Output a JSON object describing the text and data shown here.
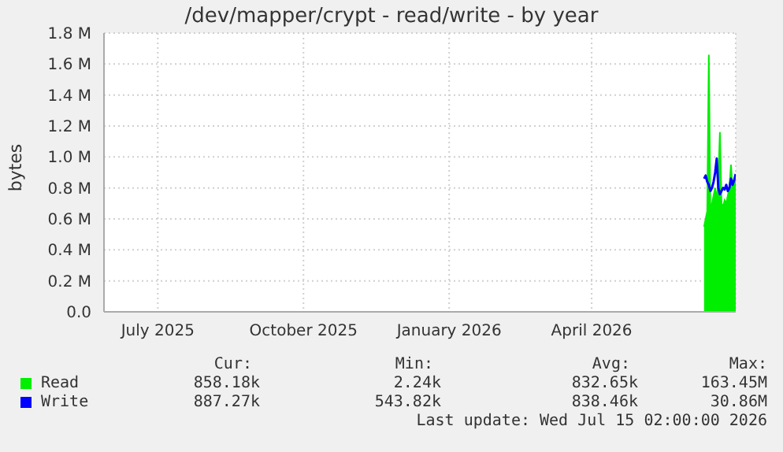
{
  "chart_data": {
    "type": "area",
    "title": "/dev/mapper/crypt - read/write - by year",
    "ylabel": "bytes",
    "x": [
      "2026-06-25",
      "2026-06-26",
      "2026-06-27",
      "2026-06-28",
      "2026-06-29",
      "2026-06-30",
      "2026-07-01",
      "2026-07-02",
      "2026-07-03",
      "2026-07-04",
      "2026-07-05",
      "2026-07-06",
      "2026-07-07",
      "2026-07-08",
      "2026-07-09",
      "2026-07-10",
      "2026-07-11",
      "2026-07-12",
      "2026-07-13",
      "2026-07-14",
      "2026-07-15"
    ],
    "series": [
      {
        "name": "Read",
        "color": "#00ee00",
        "values": [
          550000,
          600000,
          650000,
          1660000,
          620000,
          700000,
          750000,
          800000,
          720000,
          850000,
          1160000,
          700000,
          680000,
          720000,
          700000,
          750000,
          800000,
          950000,
          780000,
          820000,
          860000
        ]
      },
      {
        "name": "Write",
        "type": "line",
        "color": "#0000ff",
        "values": [
          860000,
          880000,
          840000,
          820000,
          780000,
          800000,
          840000,
          900000,
          990000,
          800000,
          760000,
          780000,
          800000,
          790000,
          820000,
          780000,
          800000,
          860000,
          820000,
          850000,
          890000
        ]
      }
    ],
    "xlim": [
      "2025-06-11",
      "2026-07-15"
    ],
    "xticks": [
      {
        "value": "2025-07-15",
        "label": "July 2025"
      },
      {
        "value": "2025-10-15",
        "label": "October 2025"
      },
      {
        "value": "2026-01-15",
        "label": "January 2026"
      },
      {
        "value": "2026-04-15",
        "label": "April 2026"
      }
    ],
    "ylim": [
      0,
      1800000
    ],
    "yticks": [
      {
        "value": 0,
        "label": "0.0"
      },
      {
        "value": 200000,
        "label": "0.2 M"
      },
      {
        "value": 400000,
        "label": "0.4 M"
      },
      {
        "value": 600000,
        "label": "0.6 M"
      },
      {
        "value": 800000,
        "label": "0.8 M"
      },
      {
        "value": 1000000,
        "label": "1.0 M"
      },
      {
        "value": 1200000,
        "label": "1.2 M"
      },
      {
        "value": 1400000,
        "label": "1.4 M"
      },
      {
        "value": 1600000,
        "label": "1.6 M"
      },
      {
        "value": 1800000,
        "label": "1.8 M"
      }
    ],
    "grid": true,
    "legend": "bottom left",
    "annotations": [
      "Cur:",
      "Min:",
      "Avg:",
      "Max:",
      "858.18k",
      "2.24k",
      "832.65k",
      "163.45M",
      "887.27k",
      "543.82k",
      "838.46k",
      "30.86M",
      "Last update: Wed Jul 15 02:00:00 2026"
    ]
  }
}
